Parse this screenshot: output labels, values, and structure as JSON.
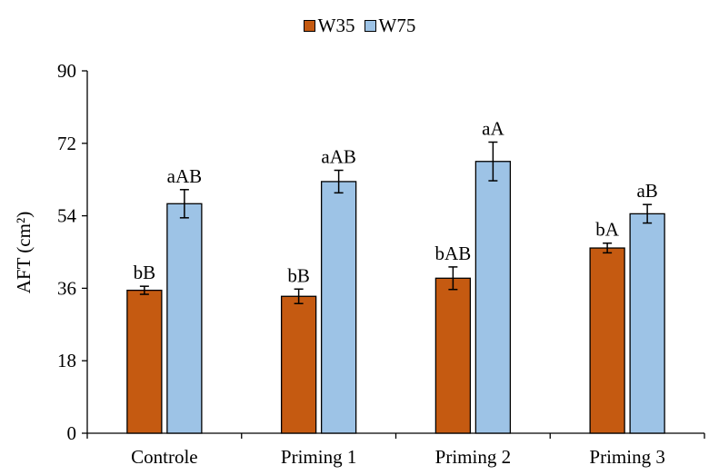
{
  "chart_data": {
    "type": "bar",
    "categories": [
      "Controle",
      "Priming 1",
      "Priming 2",
      "Priming 3"
    ],
    "series": [
      {
        "name": "W35",
        "color": "#c55a11",
        "values": [
          35.5,
          34.0,
          38.5,
          46.0
        ],
        "errors": [
          1.0,
          1.8,
          2.8,
          1.2
        ],
        "labels": [
          "bB",
          "bB",
          "bAB",
          "bA"
        ]
      },
      {
        "name": "W75",
        "color": "#9dc3e6",
        "values": [
          57.0,
          62.5,
          67.5,
          54.5
        ],
        "errors": [
          3.5,
          2.8,
          4.8,
          2.3
        ],
        "labels": [
          "aAB",
          "aAB",
          "aA",
          "aB"
        ]
      }
    ],
    "xlabel": "",
    "ylabel": "AFT (cm²)",
    "ylim": [
      0,
      90
    ],
    "yticks": [
      0,
      18,
      36,
      54,
      72,
      90
    ],
    "grid": false,
    "legend": "top-center"
  }
}
